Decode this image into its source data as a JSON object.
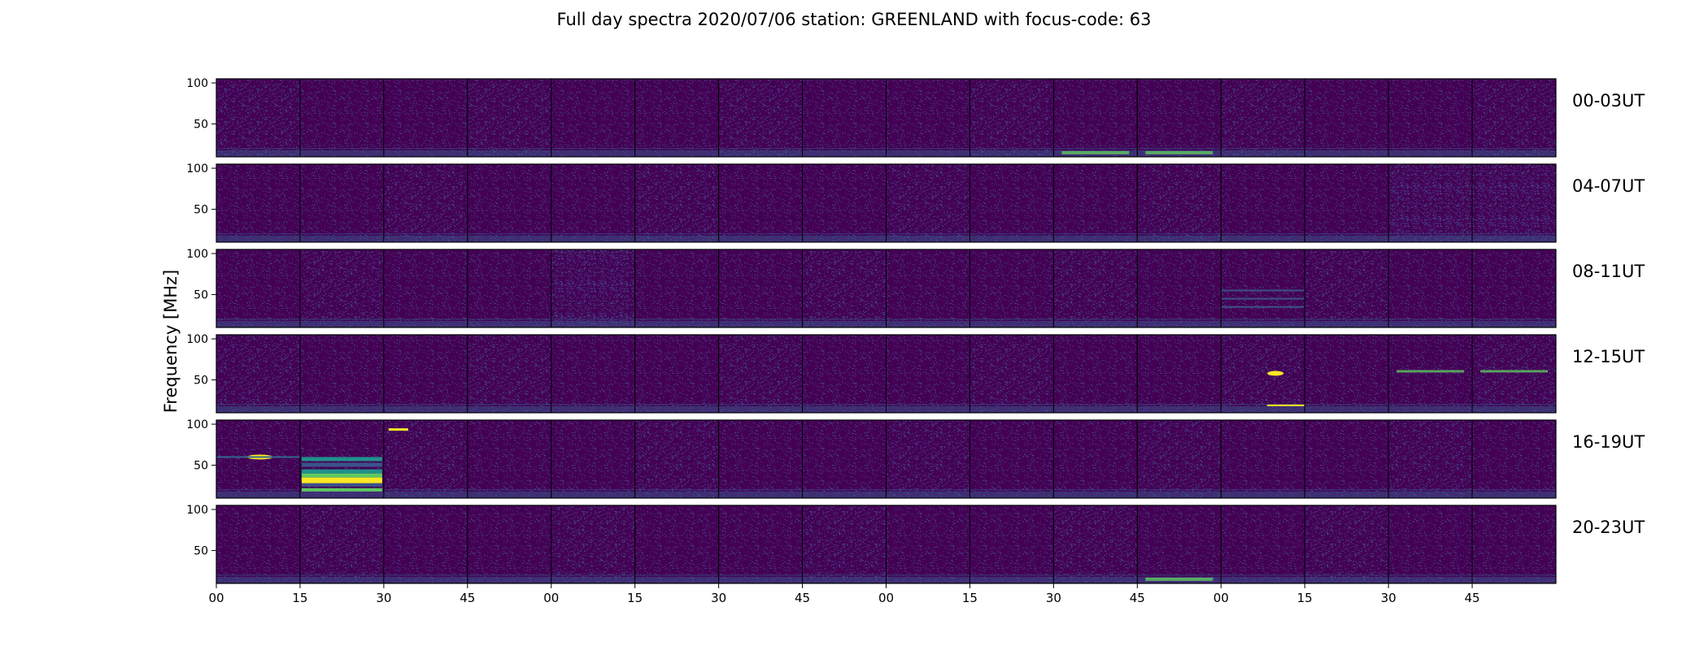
{
  "chart_data": {
    "type": "heatmap",
    "title": "Full day spectra 2020/07/06 station: GREENLAND with focus-code: 63",
    "ylabel": "Frequency [MHz]",
    "xlabel": "",
    "y_ticks": [
      50,
      100
    ],
    "ylim": [
      10,
      105
    ],
    "x_ticks": [
      "00",
      "15",
      "30",
      "45",
      "00",
      "15",
      "30",
      "45",
      "00",
      "15",
      "30",
      "45",
      "00",
      "15",
      "30",
      "45"
    ],
    "colormap": [
      "#440154",
      "#3b528b",
      "#21918c",
      "#5ec962",
      "#fde725"
    ],
    "rows": [
      {
        "label": "00-03UT",
        "panels": 16
      },
      {
        "label": "04-07UT",
        "panels": 16
      },
      {
        "label": "08-11UT",
        "panels": 16
      },
      {
        "label": "12-15UT",
        "panels": 16
      },
      {
        "label": "16-19UT",
        "panels": 16
      },
      {
        "label": "20-23UT",
        "panels": 16
      }
    ]
  }
}
